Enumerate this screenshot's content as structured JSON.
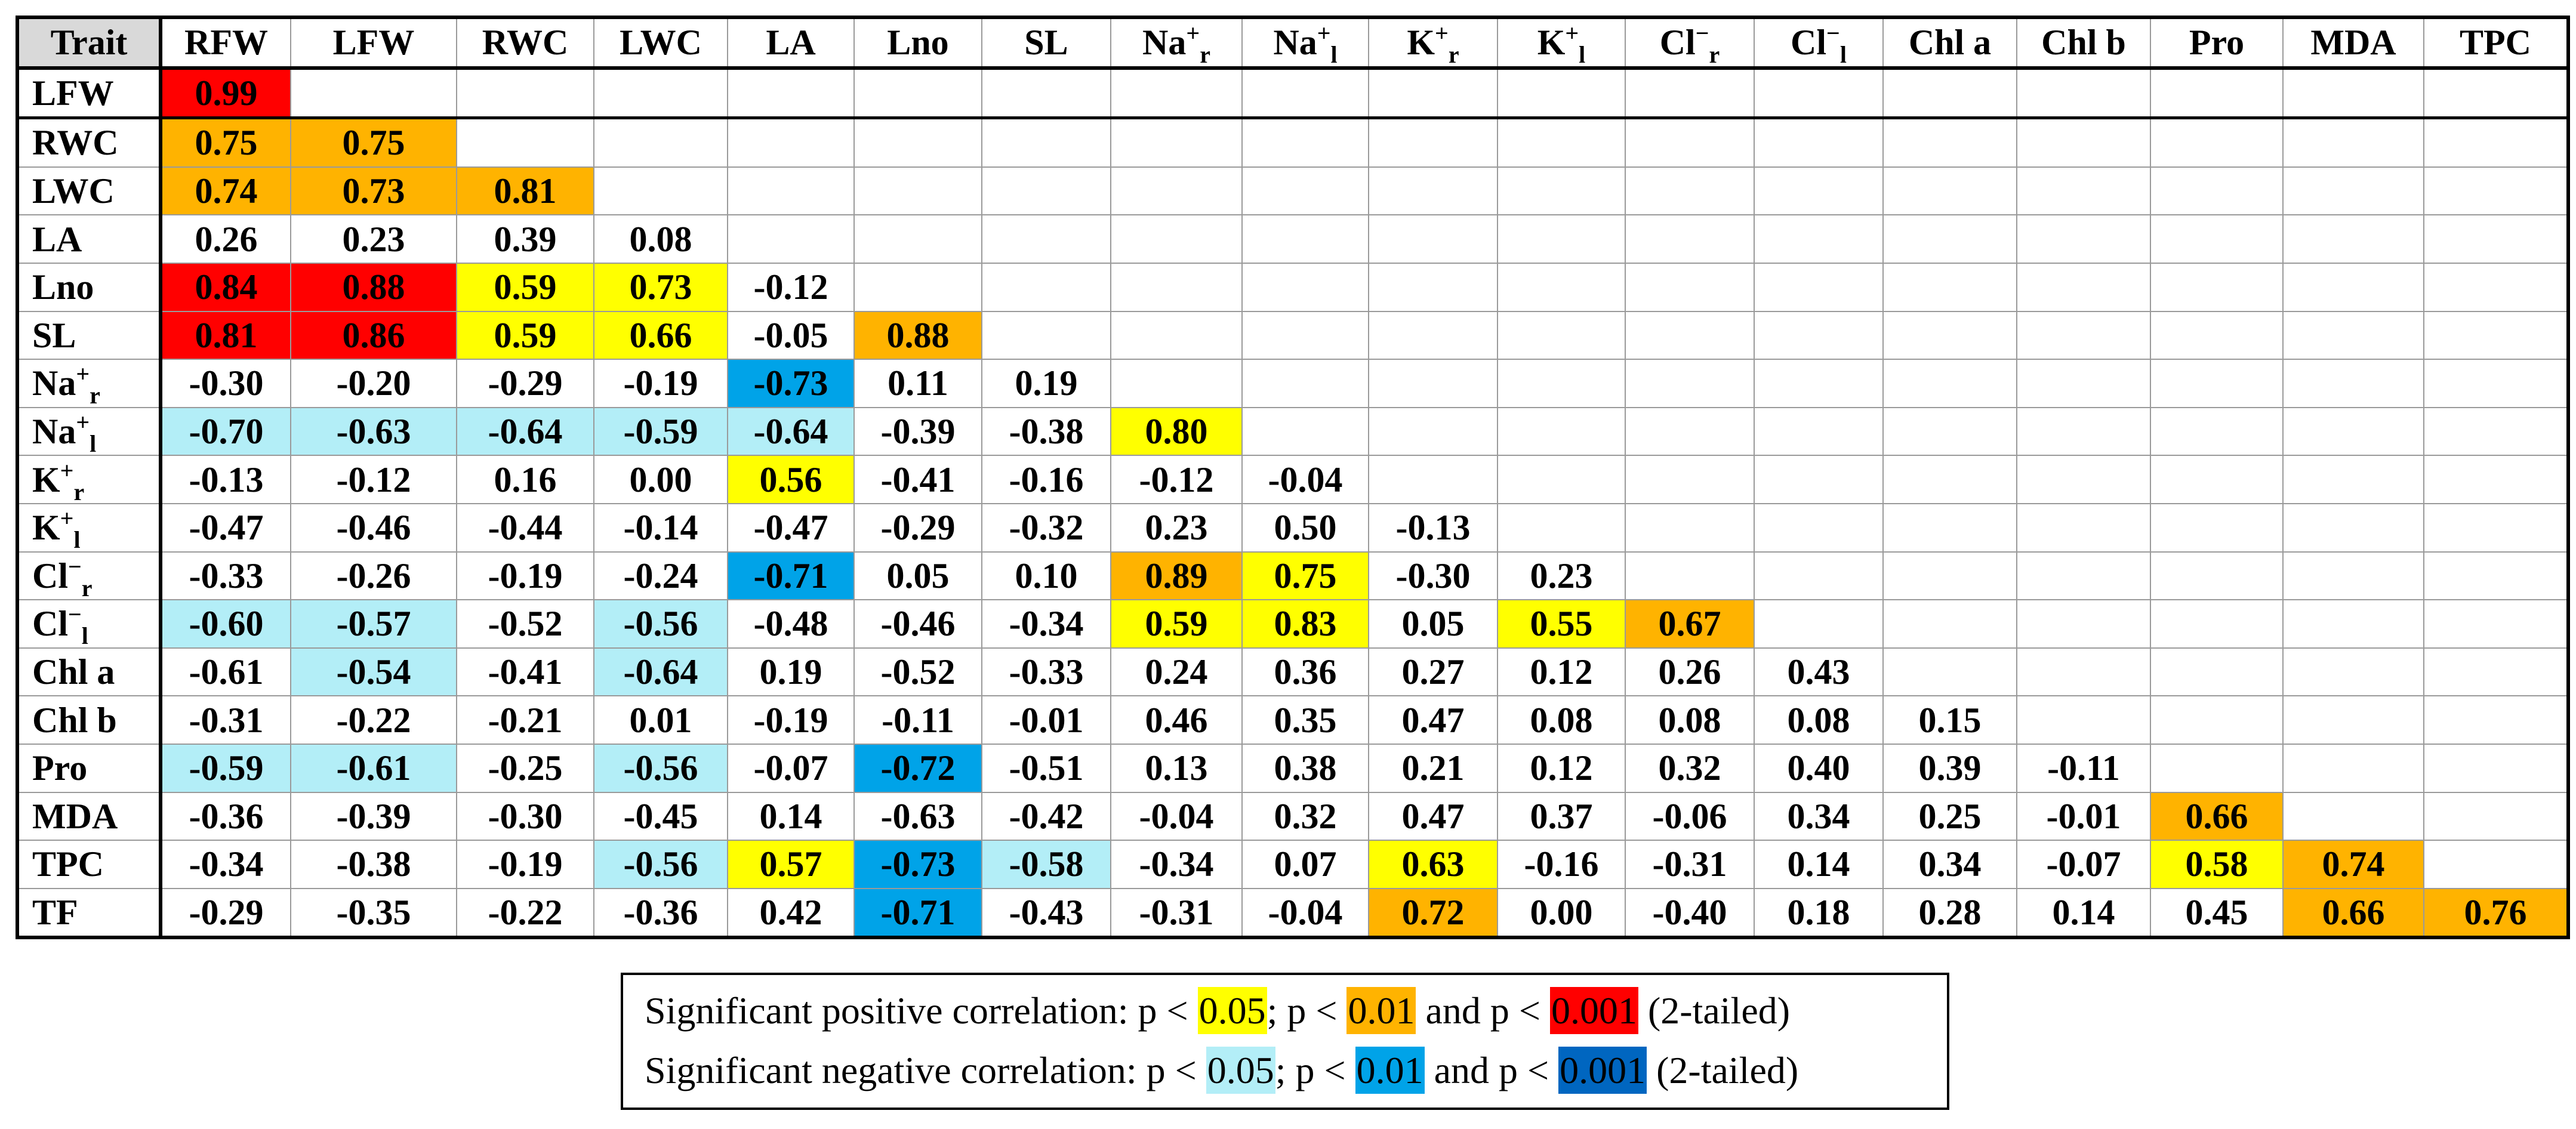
{
  "table": {
    "header": [
      {
        "b": "Trait"
      },
      {
        "b": "RFW"
      },
      {
        "b": "LFW"
      },
      {
        "b": "RWC"
      },
      {
        "b": "LWC"
      },
      {
        "b": "LA"
      },
      {
        "b": "Lno"
      },
      {
        "b": "SL"
      },
      {
        "b": "Na",
        "sup": "+",
        "sub": "r"
      },
      {
        "b": "Na",
        "sup": "+",
        "sub": "l"
      },
      {
        "b": "K",
        "sup": "+",
        "sub": "r"
      },
      {
        "b": "K",
        "sup": "+",
        "sub": "l"
      },
      {
        "b": "Cl",
        "sup": "−",
        "sub": "r"
      },
      {
        "b": "Cl",
        "sup": "−",
        "sub": "l"
      },
      {
        "b": "Chl a"
      },
      {
        "b": "Chl b"
      },
      {
        "b": "Pro"
      },
      {
        "b": "MDA"
      },
      {
        "b": "TPC"
      }
    ],
    "row_labels": [
      {
        "b": "LFW"
      },
      {
        "b": "RWC"
      },
      {
        "b": "LWC"
      },
      {
        "b": "LA"
      },
      {
        "b": "Lno"
      },
      {
        "b": "SL"
      },
      {
        "b": "Na",
        "sup": "+",
        "sub": "r"
      },
      {
        "b": "Na",
        "sup": "+",
        "sub": "l"
      },
      {
        "b": "K",
        "sup": "+",
        "sub": "r"
      },
      {
        "b": "K",
        "sup": "+",
        "sub": "l"
      },
      {
        "b": "Cl",
        "sup": "−",
        "sub": "r"
      },
      {
        "b": "Cl",
        "sup": "−",
        "sub": "l"
      },
      {
        "b": "Chl a"
      },
      {
        "b": "Chl b"
      },
      {
        "b": "Pro"
      },
      {
        "b": "MDA"
      },
      {
        "b": "TPC"
      },
      {
        "b": "TF"
      }
    ],
    "values": [
      [
        "0.99"
      ],
      [
        "0.75",
        "0.75"
      ],
      [
        "0.74",
        "0.73",
        "0.81"
      ],
      [
        "0.26",
        "0.23",
        "0.39",
        "0.08"
      ],
      [
        "0.84",
        "0.88",
        "0.59",
        "0.73",
        "-0.12"
      ],
      [
        "0.81",
        "0.86",
        "0.59",
        "0.66",
        "-0.05",
        "0.88"
      ],
      [
        "-0.30",
        "-0.20",
        "-0.29",
        "-0.19",
        "-0.73",
        "0.11",
        "0.19"
      ],
      [
        "-0.70",
        "-0.63",
        "-0.64",
        "-0.59",
        "-0.64",
        "-0.39",
        "-0.38",
        "0.80"
      ],
      [
        "-0.13",
        "-0.12",
        "0.16",
        "0.00",
        "0.56",
        "-0.41",
        "-0.16",
        "-0.12",
        "-0.04"
      ],
      [
        "-0.47",
        "-0.46",
        "-0.44",
        "-0.14",
        "-0.47",
        "-0.29",
        "-0.32",
        "0.23",
        "0.50",
        "-0.13"
      ],
      [
        "-0.33",
        "-0.26",
        "-0.19",
        "-0.24",
        "-0.71",
        "0.05",
        "0.10",
        "0.89",
        "0.75",
        "-0.30",
        "0.23"
      ],
      [
        "-0.60",
        "-0.57",
        "-0.52",
        "-0.56",
        "-0.48",
        "-0.46",
        "-0.34",
        "0.59",
        "0.83",
        "0.05",
        "0.55",
        "0.67"
      ],
      [
        "-0.61",
        "-0.54",
        "-0.41",
        "-0.64",
        "0.19",
        "-0.52",
        "-0.33",
        "0.24",
        "0.36",
        "0.27",
        "0.12",
        "0.26",
        "0.43"
      ],
      [
        "-0.31",
        "-0.22",
        "-0.21",
        "0.01",
        "-0.19",
        "-0.11",
        "-0.01",
        "0.46",
        "0.35",
        "0.47",
        "0.08",
        "0.08",
        "0.08",
        "0.15"
      ],
      [
        "-0.59",
        "-0.61",
        "-0.25",
        "-0.56",
        "-0.07",
        "-0.72",
        "-0.51",
        "0.13",
        "0.38",
        "0.21",
        "0.12",
        "0.32",
        "0.40",
        "0.39",
        "-0.11"
      ],
      [
        "-0.36",
        "-0.39",
        "-0.30",
        "-0.45",
        "0.14",
        "-0.63",
        "-0.42",
        "-0.04",
        "0.32",
        "0.47",
        "0.37",
        "-0.06",
        "0.34",
        "0.25",
        "-0.01",
        "0.66"
      ],
      [
        "-0.34",
        "-0.38",
        "-0.19",
        "-0.56",
        "0.57",
        "-0.73",
        "-0.58",
        "-0.34",
        "0.07",
        "0.63",
        "-0.16",
        "-0.31",
        "0.14",
        "0.34",
        "-0.07",
        "0.58",
        "0.74"
      ],
      [
        "-0.29",
        "-0.35",
        "-0.22",
        "-0.36",
        "0.42",
        "-0.71",
        "-0.43",
        "-0.31",
        "-0.04",
        "0.72",
        "0.00",
        "-0.40",
        "0.18",
        "0.28",
        "0.14",
        "0.45",
        "0.66",
        "0.76"
      ]
    ],
    "significance": [
      [
        "p3"
      ],
      [
        "p2",
        "p2"
      ],
      [
        "p2",
        "p2",
        "p2"
      ],
      [
        "",
        "",
        "",
        ""
      ],
      [
        "p3",
        "p3",
        "p1",
        "p1",
        ""
      ],
      [
        "p3",
        "p3",
        "p1",
        "p1",
        "",
        "p2"
      ],
      [
        "",
        "",
        "",
        "",
        "n2",
        "",
        ""
      ],
      [
        "n1",
        "n1",
        "n1",
        "n1",
        "n1",
        "",
        "",
        "p1"
      ],
      [
        "",
        "",
        "",
        "",
        "p1",
        "",
        "",
        "",
        ""
      ],
      [
        "",
        "",
        "",
        "",
        "",
        "",
        "",
        "",
        "",
        ""
      ],
      [
        "",
        "",
        "",
        "",
        "n2",
        "",
        "",
        "p2",
        "p1",
        "",
        ""
      ],
      [
        "n1",
        "n1",
        "",
        "n1",
        "",
        "",
        "",
        "p1",
        "p1",
        "",
        "p1",
        "p2"
      ],
      [
        "",
        "n1",
        "",
        "n1",
        "",
        "",
        "",
        "",
        "",
        "",
        "",
        "",
        ""
      ],
      [
        "",
        "",
        "",
        "",
        "",
        "",
        "",
        "",
        "",
        "",
        "",
        "",
        "",
        ""
      ],
      [
        "n1",
        "n1",
        "",
        "n1",
        "",
        "n2",
        "",
        "",
        "",
        "",
        "",
        "",
        "",
        "",
        ""
      ],
      [
        "",
        "",
        "",
        "",
        "",
        "",
        "",
        "",
        "",
        "",
        "",
        "",
        "",
        "",
        "",
        "p2"
      ],
      [
        "",
        "",
        "",
        "n1",
        "p1",
        "n2",
        "n1",
        "",
        "",
        "p1",
        "",
        "",
        "",
        "",
        "",
        "p1",
        "p2"
      ],
      [
        "",
        "",
        "",
        "",
        "",
        "n2",
        "",
        "",
        "",
        "p2",
        "",
        "",
        "",
        "",
        "",
        "",
        "p2",
        "p2"
      ]
    ]
  },
  "colors": {
    "p1": "#ffff00",
    "p2": "#ffb300",
    "p3": "#ff0000",
    "n1": "#b3eef7",
    "n2": "#00a3e8",
    "n3": "#0066c0"
  },
  "legend": {
    "positive": {
      "prefix": "Significant positive correlation: p < ",
      "v1": "0.05",
      "sep1": "; p < ",
      "v2": "0.01",
      "sep2": " and p < ",
      "v3": "0.001",
      "suffix": " (2-tailed)"
    },
    "negative": {
      "prefix": "Significant negative correlation: p < ",
      "v1": "0.05",
      "sep1": "; p < ",
      "v2": "0.01",
      "sep2": " and p < ",
      "v3": "0.001",
      "suffix": " (2-tailed)"
    }
  }
}
